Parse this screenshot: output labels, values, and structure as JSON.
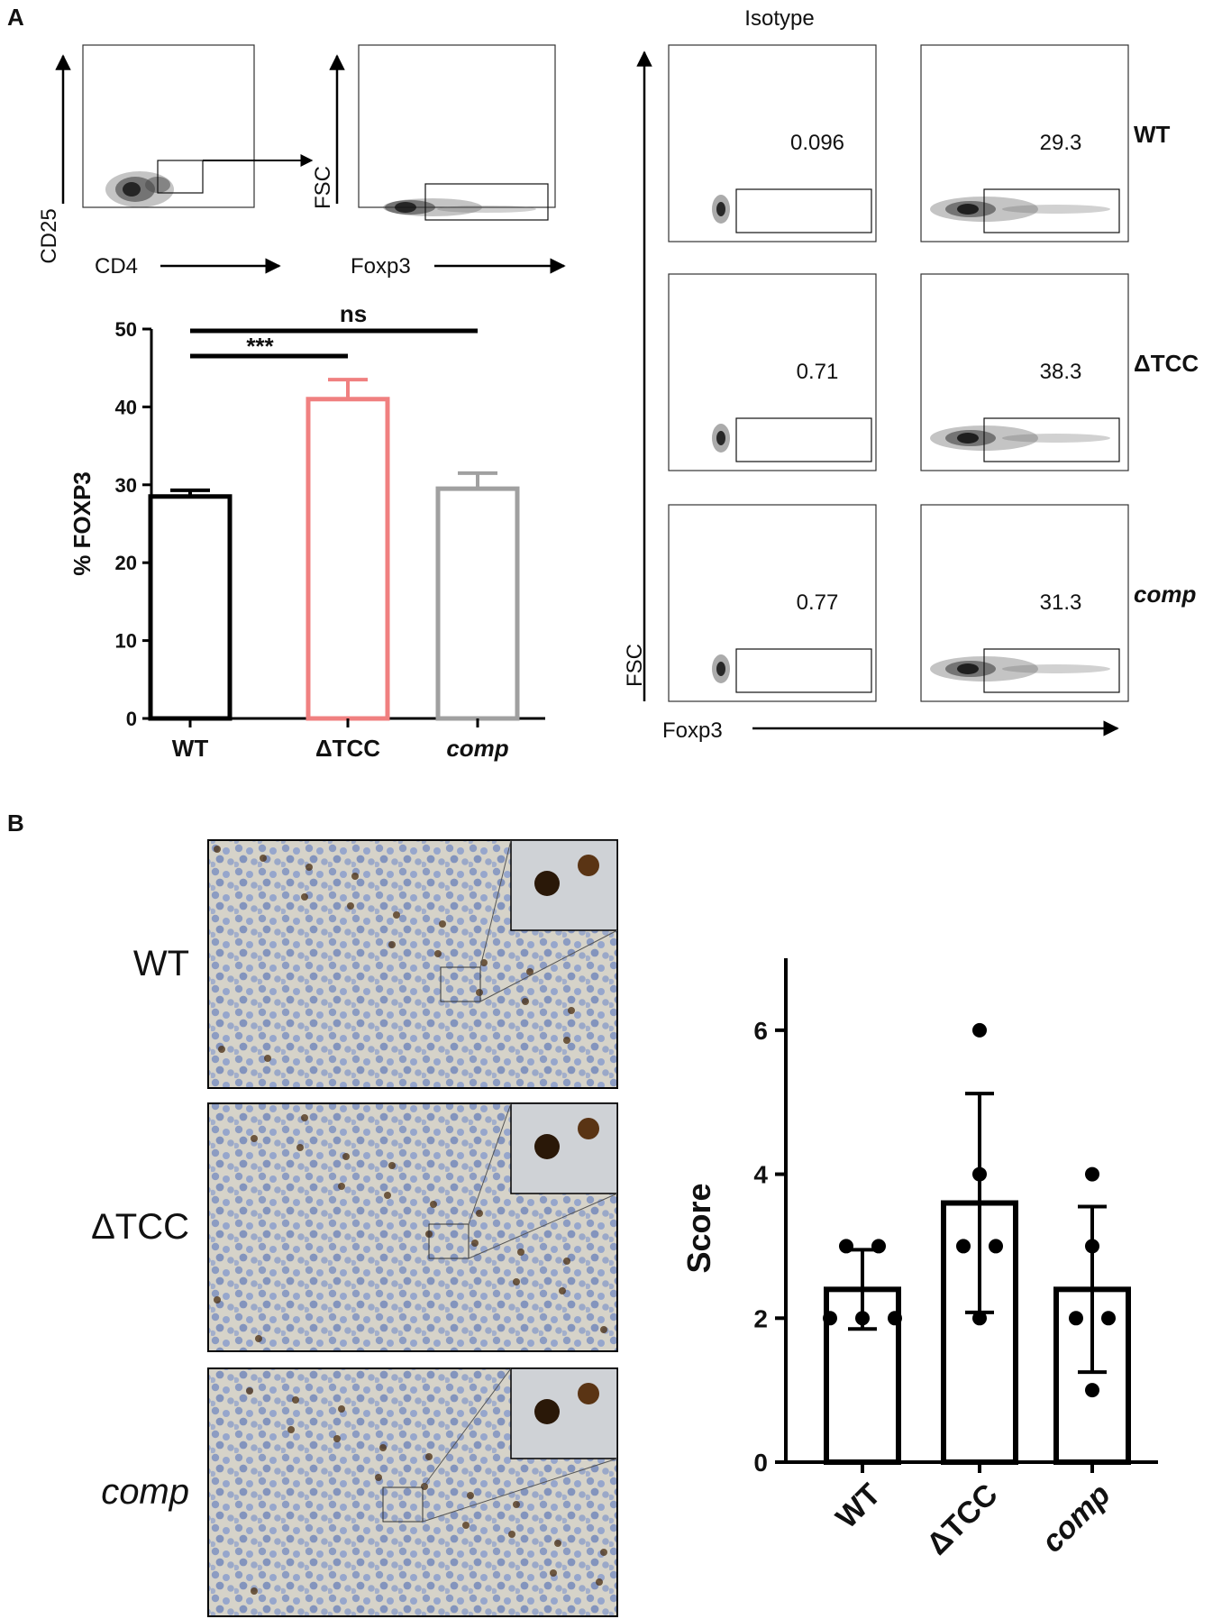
{
  "panel_a": {
    "label": "A",
    "gating_plot_1": {
      "y_label": "CD25",
      "x_label": "CD4"
    },
    "gating_plot_2": {
      "y_label": "FSC",
      "x_label": "Foxp3"
    },
    "grid": {
      "column_header": "Isotype",
      "y_label": "FSC",
      "x_label": "Foxp3",
      "rows": [
        {
          "label": "WT",
          "label_italic": false,
          "isotype_value": "0.096",
          "stain_value": "29.3"
        },
        {
          "label": "ΔTCC",
          "label_italic": false,
          "isotype_value": "0.71",
          "stain_value": "38.3"
        },
        {
          "label": "comp",
          "label_italic": true,
          "isotype_value": "0.77",
          "stain_value": "31.3"
        }
      ]
    }
  },
  "panel_b": {
    "label": "B",
    "image_labels": [
      {
        "text": "WT",
        "italic": false
      },
      {
        "text": "ΔTCC",
        "italic": false
      },
      {
        "text": "comp",
        "italic": true
      }
    ]
  },
  "chart_data": [
    {
      "type": "bar",
      "categories": [
        "WT",
        "ΔTCC",
        "comp"
      ],
      "values": [
        28.5,
        41.0,
        29.5
      ],
      "errors": [
        0.8,
        2.5,
        2.0
      ],
      "ylabel": "% FOXP3",
      "xlabel": "",
      "ylim": [
        0,
        50
      ],
      "yticks": [
        0,
        10,
        20,
        30,
        40,
        50
      ],
      "colors": [
        "#000000",
        "#f08080",
        "#a0a0a0"
      ],
      "significance": [
        {
          "from": "WT",
          "to": "ΔTCC",
          "label": "***"
        },
        {
          "from": "WT",
          "to": "comp",
          "label": "ns"
        }
      ]
    },
    {
      "type": "bar",
      "categories": [
        "WT",
        "ΔTCC",
        "comp"
      ],
      "values": [
        2.4,
        3.6,
        2.4
      ],
      "errors": [
        0.55,
        1.52,
        1.15
      ],
      "points": [
        [
          3,
          3,
          2,
          2,
          2
        ],
        [
          6,
          4,
          3,
          3,
          2
        ],
        [
          4,
          3,
          2,
          2,
          1
        ]
      ],
      "ylabel": "Score",
      "xlabel": "",
      "ylim": [
        0,
        7
      ],
      "yticks": [
        0,
        2,
        4,
        6
      ],
      "colors": [
        "#000000",
        "#000000",
        "#000000"
      ]
    }
  ]
}
